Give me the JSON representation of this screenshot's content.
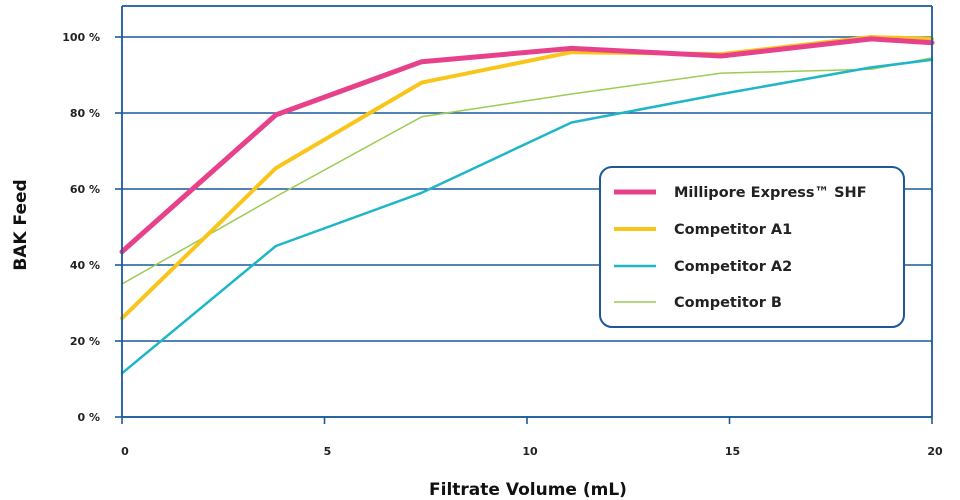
{
  "chart_data": {
    "type": "line",
    "title": "",
    "xlabel": "Filtrate Volume (mL)",
    "ylabel": "BAK Feed",
    "xlim": [
      0,
      20
    ],
    "ylim": [
      0,
      100
    ],
    "x_ticks": [
      {
        "value": 0,
        "label": "0"
      },
      {
        "value": 5,
        "label": "5"
      },
      {
        "value": 10,
        "label": "10"
      },
      {
        "value": 15,
        "label": "15"
      },
      {
        "value": 20,
        "label": "20"
      }
    ],
    "y_ticks": [
      {
        "value": 0,
        "label": "0 %"
      },
      {
        "value": 20,
        "label": "20 %"
      },
      {
        "value": 40,
        "label": "40 %"
      },
      {
        "value": 60,
        "label": "60 %"
      },
      {
        "value": 80,
        "label": "80 %"
      },
      {
        "value": 100,
        "label": "100 %"
      }
    ],
    "grid": "horizontal",
    "legend_position": "right-center",
    "colors": {
      "axis": "#1a5a9a",
      "grid": "#1a5a9a",
      "legend_border": "#1a5a9a"
    },
    "series": [
      {
        "name": "Millipore Express™ SHF",
        "color": "#e8418c",
        "width": 5,
        "points": [
          [
            0,
            43.5
          ],
          [
            3.8,
            79.5
          ],
          [
            7.4,
            93.5
          ],
          [
            11.1,
            97
          ],
          [
            14.8,
            95
          ],
          [
            18.5,
            99.5
          ],
          [
            20,
            98.5
          ]
        ]
      },
      {
        "name": "Competitor A1",
        "color": "#f9c51b",
        "width": 4,
        "points": [
          [
            0,
            26
          ],
          [
            3.8,
            65.5
          ],
          [
            7.4,
            88
          ],
          [
            11.1,
            96
          ],
          [
            14.8,
            95.5
          ],
          [
            18.5,
            100
          ],
          [
            20,
            99.5
          ]
        ]
      },
      {
        "name": "Competitor A2",
        "color": "#1fb6c8",
        "width": 2.5,
        "points": [
          [
            0,
            11.5
          ],
          [
            3.8,
            45
          ],
          [
            7.4,
            59
          ],
          [
            11.1,
            77.5
          ],
          [
            14.8,
            85
          ],
          [
            18.5,
            92
          ],
          [
            20,
            94
          ]
        ]
      },
      {
        "name": "Competitor B",
        "color": "#9ccc54",
        "width": 1.5,
        "points": [
          [
            0,
            35
          ],
          [
            3.8,
            58
          ],
          [
            7.4,
            79
          ],
          [
            11.1,
            85
          ],
          [
            14.8,
            90.5
          ],
          [
            18.5,
            91.5
          ],
          [
            20,
            94.5
          ]
        ]
      }
    ]
  }
}
